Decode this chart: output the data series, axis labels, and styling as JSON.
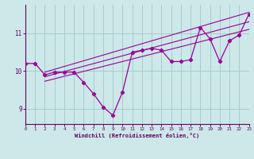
{
  "x": [
    0,
    1,
    2,
    3,
    4,
    5,
    6,
    7,
    8,
    9,
    10,
    11,
    12,
    13,
    14,
    15,
    16,
    17,
    18,
    19,
    20,
    21,
    22,
    23
  ],
  "main_line": [
    10.2,
    10.2,
    9.9,
    9.97,
    9.97,
    9.97,
    9.7,
    9.4,
    9.05,
    8.83,
    9.45,
    10.5,
    10.55,
    10.6,
    10.55,
    10.25,
    10.25,
    10.3,
    11.15,
    10.85,
    10.25,
    10.8,
    10.95,
    11.5
  ],
  "trend_lines": [
    {
      "x": [
        2,
        23
      ],
      "y": [
        9.97,
        11.55
      ]
    },
    {
      "x": [
        2,
        23
      ],
      "y": [
        9.85,
        11.3
      ]
    },
    {
      "x": [
        2,
        23
      ],
      "y": [
        9.73,
        11.1
      ]
    }
  ],
  "xlim": [
    0,
    23
  ],
  "ylim": [
    8.6,
    11.75
  ],
  "yticks": [
    9,
    10,
    11
  ],
  "xticks": [
    0,
    1,
    2,
    3,
    4,
    5,
    6,
    7,
    8,
    9,
    10,
    11,
    12,
    13,
    14,
    15,
    16,
    17,
    18,
    19,
    20,
    21,
    22,
    23
  ],
  "xlabel": "Windchill (Refroidissement éolien,°C)",
  "line_color": "#990099",
  "bg_color": "#cce8e8",
  "grid_color": "#aacccc",
  "axis_color": "#660066",
  "tick_color": "#660066",
  "label_color": "#660066"
}
